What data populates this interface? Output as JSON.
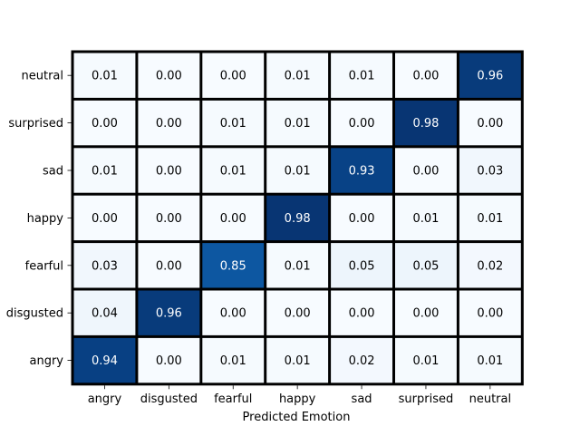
{
  "chart_data": {
    "type": "heatmap",
    "title": "",
    "xlabel": "Predicted Emotion",
    "ylabel": "",
    "x_categories": [
      "angry",
      "disgusted",
      "fearful",
      "happy",
      "sad",
      "surprised",
      "neutral"
    ],
    "y_categories": [
      "neutral",
      "surprised",
      "sad",
      "happy",
      "fearful",
      "disgusted",
      "angry"
    ],
    "values": [
      [
        0.01,
        0.0,
        0.0,
        0.01,
        0.01,
        0.0,
        0.96
      ],
      [
        0.0,
        0.0,
        0.01,
        0.01,
        0.0,
        0.98,
        0.0
      ],
      [
        0.01,
        0.0,
        0.01,
        0.01,
        0.93,
        0.0,
        0.03
      ],
      [
        0.0,
        0.0,
        0.0,
        0.98,
        0.0,
        0.01,
        0.01
      ],
      [
        0.03,
        0.0,
        0.85,
        0.01,
        0.05,
        0.05,
        0.02
      ],
      [
        0.04,
        0.96,
        0.0,
        0.0,
        0.0,
        0.0,
        0.0
      ],
      [
        0.94,
        0.0,
        0.01,
        0.01,
        0.02,
        0.01,
        0.01
      ]
    ],
    "value_format": "2 decimals",
    "colormap": "Blues",
    "color_low": "#f7fbff",
    "color_high": "#08306b",
    "cell_border_color": "#000000",
    "grid": false,
    "legend": "none"
  }
}
